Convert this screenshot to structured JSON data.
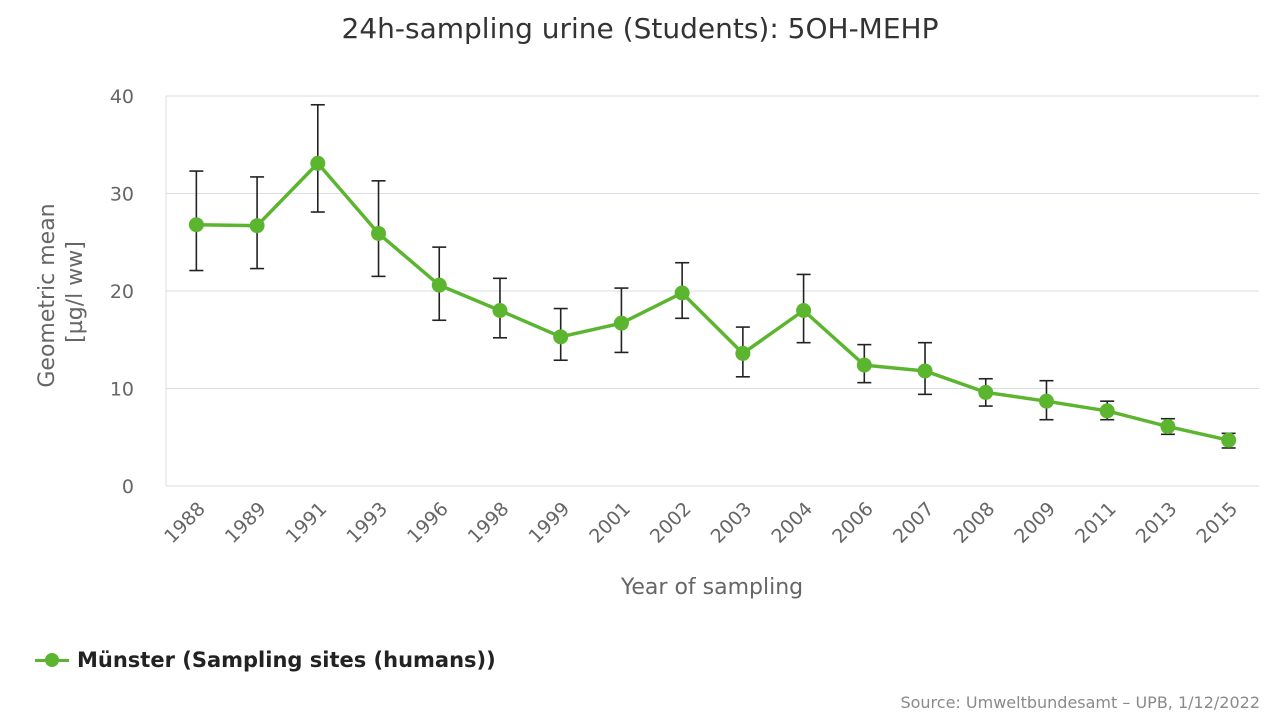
{
  "chart_data": {
    "type": "line",
    "title": "24h-sampling urine (Students): 5OH-MEHP",
    "xlabel": "Year of sampling",
    "ylabel_line1": "Geometric mean",
    "ylabel_line2": "[µg/l ww]",
    "ylim": [
      0,
      40
    ],
    "yticks": [
      0,
      10,
      20,
      30,
      40
    ],
    "grid": true,
    "legend_position": "bottom-left",
    "categories": [
      "1988",
      "1989",
      "1991",
      "1993",
      "1996",
      "1998",
      "1999",
      "2001",
      "2002",
      "2003",
      "2004",
      "2006",
      "2007",
      "2008",
      "2009",
      "2011",
      "2013",
      "2015"
    ],
    "series": [
      {
        "name": "Münster (Sampling sites (humans))",
        "color": "#5bb52f",
        "values": [
          26.8,
          26.7,
          33.1,
          25.9,
          20.6,
          18.0,
          15.3,
          16.7,
          19.8,
          13.6,
          18.0,
          12.4,
          11.8,
          9.6,
          8.7,
          7.7,
          6.1,
          4.7
        ],
        "error_low": [
          22.1,
          22.3,
          28.1,
          21.5,
          17.0,
          15.2,
          12.9,
          13.7,
          17.2,
          11.2,
          14.7,
          10.6,
          9.4,
          8.2,
          6.8,
          6.8,
          5.3,
          3.9
        ],
        "error_high": [
          32.3,
          31.7,
          39.1,
          31.3,
          24.5,
          21.3,
          18.2,
          20.3,
          22.9,
          16.3,
          21.7,
          14.5,
          14.7,
          11.0,
          10.8,
          8.7,
          6.9,
          5.4
        ]
      }
    ]
  },
  "source": "Source: Umweltbundesamt – UPB, 1/12/2022"
}
